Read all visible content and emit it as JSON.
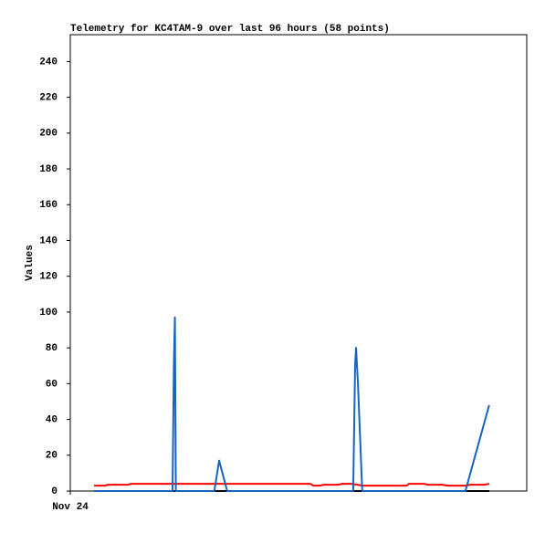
{
  "chart_data": {
    "type": "line",
    "title": "Telemetry for KC4TAM-9 over last 96 hours (58 points)",
    "y_label": "Values",
    "xlim": [
      0,
      96
    ],
    "xticks": [
      {
        "value": 0,
        "label": "Nov 24"
      }
    ],
    "ylim": [
      0,
      255
    ],
    "yticks": [
      0,
      20,
      40,
      60,
      80,
      100,
      120,
      140,
      160,
      180,
      200,
      220,
      240
    ],
    "grid": false,
    "series": [
      {
        "color": "#000000",
        "x": [
          5.0,
          88.1
        ],
        "values": [
          0,
          0
        ]
      },
      {
        "color": "#ff0000",
        "x": [
          5.0,
          7.3,
          7.9,
          12.1,
          12.7,
          50.5,
          51.1,
          52.4,
          53.4,
          56.3,
          57.2,
          59.1,
          61.6,
          70.7,
          71.2,
          74.5,
          75.1,
          78.3,
          79.3,
          83.1,
          84.1,
          87.0,
          88.1
        ],
        "values": [
          3,
          3,
          3.5,
          3.5,
          4,
          4,
          3,
          3,
          3.5,
          3.5,
          4,
          4,
          3,
          3,
          4,
          4,
          3.5,
          3.5,
          3,
          3,
          3.5,
          3.5,
          4
        ]
      },
      {
        "color": "#1565c0",
        "x": [
          5.0,
          21.5,
          21.8,
          22.0,
          22.2,
          30.3,
          31.3,
          33.0,
          59.5,
          59.9,
          60.1,
          60.5,
          61.4,
          83.1,
          88.1
        ],
        "values": [
          0,
          0,
          73,
          97,
          0,
          0,
          17,
          0,
          0,
          70,
          80,
          60,
          0,
          0,
          48
        ]
      }
    ]
  }
}
